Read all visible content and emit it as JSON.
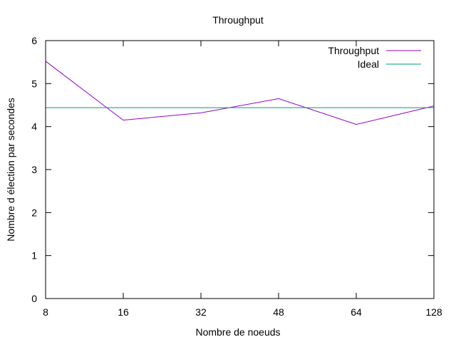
{
  "chart_data": {
    "type": "line",
    "title": "Throughput",
    "xlabel": "Nombre de noeuds",
    "ylabel": "Nombre d élection par secondes",
    "categories": [
      "8",
      "16",
      "32",
      "48",
      "64",
      "128"
    ],
    "ylim": [
      0,
      6
    ],
    "yticks": [
      "0",
      "1",
      "2",
      "3",
      "4",
      "5",
      "6"
    ],
    "grid": false,
    "legend_position": "top-right",
    "series": [
      {
        "name": "Throughput",
        "color": "#9400d3",
        "values": [
          5.52,
          4.15,
          4.32,
          4.65,
          4.05,
          4.48
        ]
      },
      {
        "name": "Ideal",
        "color": "#009e73",
        "values": [
          4.44,
          4.44,
          4.44,
          4.44,
          4.44,
          4.44
        ]
      }
    ]
  }
}
